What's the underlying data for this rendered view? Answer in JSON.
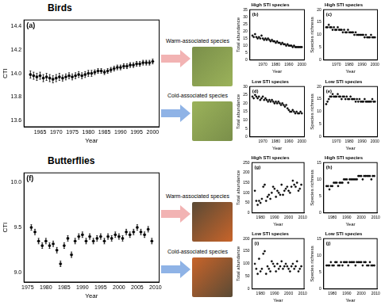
{
  "groups": [
    {
      "title": "Birds",
      "warm_label": "Warm-associated species",
      "cold_label": "Cold-associated species"
    },
    {
      "title": "Butterflies",
      "warm_label": "Warm-associated species",
      "cold_label": "Cold-associated species"
    }
  ],
  "chart_data": [
    {
      "type": "scatter",
      "panel": "(a)",
      "x_label": "Year",
      "y_label": "CTI",
      "x": [
        1962,
        1963,
        1964,
        1965,
        1966,
        1967,
        1968,
        1969,
        1970,
        1971,
        1972,
        1973,
        1974,
        1975,
        1976,
        1977,
        1978,
        1979,
        1980,
        1981,
        1982,
        1983,
        1984,
        1985,
        1986,
        1987,
        1988,
        1989,
        1990,
        1991,
        1992,
        1993,
        1994,
        1995,
        1996,
        1997,
        1998,
        1999,
        2000
      ],
      "values": [
        13.99,
        13.98,
        13.97,
        13.98,
        13.96,
        13.97,
        13.96,
        13.95,
        13.96,
        13.97,
        13.96,
        13.97,
        13.98,
        13.97,
        13.98,
        13.99,
        13.98,
        13.99,
        14,
        14,
        14.01,
        14.02,
        14.02,
        14.01,
        14.02,
        14.03,
        14.04,
        14.05,
        14.05,
        14.06,
        14.06,
        14.07,
        14.07,
        14.08,
        14.08,
        14.09,
        14.09,
        14.09,
        14.1
      ],
      "errors": [
        0.03,
        0.03,
        0.03,
        0.03,
        0.03,
        0.03,
        0.03,
        0.03,
        0.03,
        0.03,
        0.025,
        0.025,
        0.025,
        0.025,
        0.025,
        0.025,
        0.025,
        0.025,
        0.025,
        0.025,
        0.02,
        0.02,
        0.02,
        0.02,
        0.02,
        0.02,
        0.02,
        0.02,
        0.02,
        0.02,
        0.02,
        0.02,
        0.02,
        0.02,
        0.02,
        0.02,
        0.02,
        0.02,
        0.02
      ],
      "color": "#000000",
      "marker": "circle",
      "xlim": [
        1960,
        2002
      ],
      "xticks": [
        1965,
        1970,
        1975,
        1980,
        1985,
        1990,
        1995,
        2000
      ],
      "ylim": [
        13.55,
        14.45
      ],
      "yticks": [
        13.6,
        13.8,
        {
          "value": 14,
          "label": "14.0"
        },
        14.2,
        14.4
      ],
      "grid": false
    },
    {
      "type": "scatter",
      "panel": "(b)",
      "title": "High STI species",
      "x_label": "Year",
      "y_label": "Total abundance",
      "x": [
        1962,
        1963,
        1964,
        1965,
        1966,
        1967,
        1968,
        1969,
        1970,
        1971,
        1972,
        1973,
        1974,
        1975,
        1976,
        1977,
        1978,
        1979,
        1980,
        1981,
        1982,
        1983,
        1984,
        1985,
        1986,
        1987,
        1988,
        1989,
        1990,
        1991,
        1992,
        1993,
        1994,
        1995,
        1996,
        1997,
        1998,
        1999,
        2000
      ],
      "values": [
        17,
        16,
        18,
        16,
        15,
        16,
        15,
        17,
        15,
        14,
        15,
        14,
        15,
        14,
        13,
        14,
        13,
        13,
        12,
        13,
        12,
        12,
        11,
        12,
        11,
        11,
        10,
        11,
        10,
        10,
        10,
        9,
        10,
        9,
        9,
        9,
        9,
        9,
        9
      ],
      "color": "#000000",
      "marker": "circle",
      "xlim": [
        1960,
        2002
      ],
      "xticks": [
        1970,
        1980,
        1990,
        2000
      ],
      "ylim": [
        0,
        35
      ],
      "yticks": [
        0,
        5,
        10,
        15,
        20,
        25,
        30,
        35
      ],
      "grid": false
    },
    {
      "type": "scatter",
      "panel": "(c)",
      "title": "High STI species",
      "x_label": "Year",
      "y_label": "Species richness",
      "x": [
        1962,
        1963,
        1964,
        1965,
        1966,
        1967,
        1968,
        1969,
        1970,
        1971,
        1972,
        1973,
        1974,
        1975,
        1976,
        1977,
        1978,
        1979,
        1980,
        1981,
        1982,
        1983,
        1984,
        1985,
        1986,
        1987,
        1988,
        1989,
        1990,
        1991,
        1992,
        1993,
        1994,
        1995,
        1996,
        1997,
        1998,
        1999,
        2000
      ],
      "values": [
        13,
        13,
        14,
        13,
        13,
        12,
        13,
        12,
        12,
        13,
        12,
        12,
        12,
        11,
        12,
        11,
        11,
        12,
        11,
        11,
        11,
        11,
        10,
        11,
        10,
        10,
        10,
        10,
        10,
        10,
        9,
        10,
        9,
        9,
        9,
        10,
        9,
        9,
        9
      ],
      "color": "#000000",
      "marker": "circle",
      "xlim": [
        1960,
        2002
      ],
      "xticks": [
        1970,
        1980,
        1990,
        2000
      ],
      "ylim": [
        0,
        20
      ],
      "yticks": [
        0,
        5,
        10,
        15,
        20
      ],
      "grid": false
    },
    {
      "type": "scatter",
      "panel": "(d)",
      "title": "Low STI species",
      "x_label": "Year",
      "y_label": "Total abundance",
      "x": [
        1962,
        1963,
        1964,
        1965,
        1966,
        1967,
        1968,
        1969,
        1970,
        1971,
        1972,
        1973,
        1974,
        1975,
        1976,
        1977,
        1978,
        1979,
        1980,
        1981,
        1982,
        1983,
        1984,
        1985,
        1986,
        1987,
        1988,
        1989,
        1990,
        1991,
        1992,
        1993,
        1994,
        1995,
        1996,
        1997,
        1998,
        1999,
        2000
      ],
      "values": [
        24,
        23,
        25,
        24,
        23,
        24,
        22,
        23,
        24,
        22,
        23,
        22,
        21,
        22,
        21,
        22,
        21,
        20,
        21,
        20,
        21,
        20,
        19,
        20,
        19,
        18,
        19,
        17,
        16,
        15,
        15,
        16,
        15,
        14,
        15,
        14,
        14,
        15,
        14
      ],
      "color": "#000000",
      "marker": "circle",
      "xlim": [
        1960,
        2002
      ],
      "xticks": [
        1970,
        1980,
        1990,
        2000
      ],
      "ylim": [
        0,
        30
      ],
      "yticks": [
        0,
        5,
        10,
        15,
        20,
        25,
        30
      ],
      "grid": false
    },
    {
      "type": "scatter",
      "panel": "(e)",
      "title": "Low STI species",
      "x_label": "Year",
      "y_label": "Species richness",
      "x": [
        1962,
        1963,
        1964,
        1965,
        1966,
        1967,
        1968,
        1969,
        1970,
        1971,
        1972,
        1973,
        1974,
        1975,
        1976,
        1977,
        1978,
        1979,
        1980,
        1981,
        1982,
        1983,
        1984,
        1985,
        1986,
        1987,
        1988,
        1989,
        1990,
        1991,
        1992,
        1993,
        1994,
        1995,
        1996,
        1997,
        1998,
        1999,
        2000
      ],
      "values": [
        13,
        14,
        15,
        16,
        16,
        17,
        16,
        16,
        16,
        17,
        16,
        16,
        15,
        16,
        16,
        15,
        16,
        15,
        15,
        16,
        15,
        15,
        15,
        14,
        15,
        14,
        15,
        14,
        14,
        14,
        15,
        14,
        14,
        14,
        14,
        14,
        15,
        14,
        14
      ],
      "color": "#000000",
      "marker": "circle",
      "xlim": [
        1960,
        2002
      ],
      "xticks": [
        1970,
        1980,
        1990,
        2000
      ],
      "ylim": [
        0,
        20
      ],
      "yticks": [
        0,
        5,
        10,
        15,
        20
      ],
      "grid": false
    },
    {
      "type": "scatter",
      "panel": "(f)",
      "x_label": "Year",
      "y_label": "CTI",
      "x": [
        1976,
        1977,
        1978,
        1979,
        1980,
        1981,
        1982,
        1983,
        1984,
        1985,
        1986,
        1987,
        1988,
        1989,
        1990,
        1991,
        1992,
        1993,
        1994,
        1995,
        1996,
        1997,
        1998,
        1999,
        2000,
        2001,
        2002,
        2003,
        2004,
        2005,
        2006,
        2007,
        2008,
        2009
      ],
      "values": [
        9.5,
        9.45,
        9.35,
        9.3,
        9.35,
        9.3,
        9.32,
        9.25,
        9.1,
        9.3,
        9.38,
        9.2,
        9.35,
        9.4,
        9.42,
        9.35,
        9.4,
        9.35,
        9.38,
        9.4,
        9.35,
        9.4,
        9.38,
        9.42,
        9.4,
        9.38,
        9.45,
        9.42,
        9.45,
        9.5,
        9.45,
        9.42,
        9.48,
        9.35
      ],
      "errors": [
        0.03,
        0.03,
        0.03,
        0.03,
        0.03,
        0.03,
        0.03,
        0.03,
        0.03,
        0.03,
        0.03,
        0.03,
        0.03,
        0.03,
        0.03,
        0.03,
        0.03,
        0.03,
        0.03,
        0.03,
        0.03,
        0.03,
        0.03,
        0.03,
        0.03,
        0.03,
        0.03,
        0.03,
        0.03,
        0.03,
        0.03,
        0.03,
        0.03,
        0.03
      ],
      "color": "#000000",
      "marker": "circle",
      "xlim": [
        1974,
        2011
      ],
      "xticks": [
        1975,
        1980,
        1985,
        1990,
        1995,
        2000,
        2005,
        2010
      ],
      "ylim": [
        8.9,
        10.1
      ],
      "yticks": [
        {
          "value": 9,
          "label": "9.0"
        },
        9.5,
        {
          "value": 10,
          "label": "10.0"
        }
      ],
      "grid": false
    },
    {
      "type": "scatter",
      "panel": "(g)",
      "title": "High STI species",
      "x_label": "Year",
      "y_label": "Total abundance",
      "x": [
        1976,
        1977,
        1978,
        1979,
        1980,
        1981,
        1982,
        1983,
        1984,
        1985,
        1986,
        1987,
        1988,
        1989,
        1990,
        1991,
        1992,
        1993,
        1994,
        1995,
        1996,
        1997,
        1998,
        1999,
        2000,
        2001,
        2002,
        2003,
        2004,
        2005,
        2006,
        2007,
        2008,
        2009
      ],
      "values": [
        110,
        60,
        40,
        60,
        50,
        70,
        130,
        140,
        60,
        80,
        90,
        70,
        100,
        130,
        120,
        80,
        110,
        100,
        90,
        140,
        90,
        110,
        120,
        130,
        110,
        100,
        130,
        160,
        140,
        130,
        150,
        110,
        120,
        140
      ],
      "color": "#000000",
      "marker": "circle",
      "xlim": [
        1974,
        2011
      ],
      "xticks": [
        1980,
        1990,
        2000,
        2010
      ],
      "ylim": [
        0,
        250
      ],
      "yticks": [
        0,
        50,
        100,
        150,
        200,
        250
      ],
      "grid": false
    },
    {
      "type": "scatter",
      "panel": "(h)",
      "title": "High STI species",
      "x_label": "Year",
      "y_label": "Species richness",
      "x": [
        1976,
        1977,
        1978,
        1979,
        1980,
        1981,
        1982,
        1983,
        1984,
        1985,
        1986,
        1987,
        1988,
        1989,
        1990,
        1991,
        1992,
        1993,
        1994,
        1995,
        1996,
        1997,
        1998,
        1999,
        2000,
        2001,
        2002,
        2003,
        2004,
        2005,
        2006,
        2007,
        2008,
        2009
      ],
      "values": [
        8,
        8,
        7,
        8,
        8,
        9,
        9,
        9,
        8,
        9,
        9,
        9,
        10,
        10,
        10,
        9,
        10,
        10,
        10,
        10,
        10,
        10,
        11,
        11,
        11,
        10,
        11,
        11,
        11,
        11,
        11,
        10,
        11,
        11
      ],
      "color": "#000000",
      "marker": "circle",
      "xlim": [
        1974,
        2011
      ],
      "xticks": [
        1980,
        1990,
        2000,
        2010
      ],
      "ylim": [
        0,
        15
      ],
      "yticks": [
        0,
        5,
        10,
        15
      ],
      "grid": false
    },
    {
      "type": "scatter",
      "panel": "(i)",
      "title": "Low STI species",
      "x_label": "Year",
      "y_label": "Total abundance",
      "x": [
        1976,
        1977,
        1978,
        1979,
        1980,
        1981,
        1982,
        1983,
        1984,
        1985,
        1986,
        1987,
        1988,
        1989,
        1990,
        1991,
        1992,
        1993,
        1994,
        1995,
        1996,
        1997,
        1998,
        1999,
        2000,
        2001,
        2002,
        2003,
        2004,
        2005,
        2006,
        2007,
        2008,
        2009
      ],
      "values": [
        100,
        80,
        60,
        120,
        70,
        80,
        140,
        150,
        60,
        90,
        80,
        70,
        110,
        100,
        90,
        70,
        100,
        80,
        90,
        110,
        80,
        90,
        100,
        90,
        80,
        70,
        90,
        100,
        80,
        90,
        110,
        70,
        80,
        90
      ],
      "color": "#000000",
      "marker": "circle",
      "xlim": [
        1974,
        2011
      ],
      "xticks": [
        1980,
        1990,
        2000,
        2010
      ],
      "ylim": [
        0,
        200
      ],
      "yticks": [
        0,
        50,
        100,
        150,
        200
      ],
      "grid": false
    },
    {
      "type": "scatter",
      "panel": "(j)",
      "title": "Low STI species",
      "x_label": "Year",
      "y_label": "Species richness",
      "x": [
        1976,
        1977,
        1978,
        1979,
        1980,
        1981,
        1982,
        1983,
        1984,
        1985,
        1986,
        1987,
        1988,
        1989,
        1990,
        1991,
        1992,
        1993,
        1994,
        1995,
        1996,
        1997,
        1998,
        1999,
        2000,
        2001,
        2002,
        2003,
        2004,
        2005,
        2006,
        2007,
        2008,
        2009
      ],
      "values": [
        7,
        7,
        7,
        8,
        7,
        7,
        8,
        8,
        7,
        7,
        8,
        7,
        8,
        8,
        8,
        7,
        8,
        8,
        8,
        8,
        7,
        8,
        8,
        8,
        8,
        7,
        8,
        8,
        7,
        7,
        8,
        7,
        7,
        7
      ],
      "color": "#000000",
      "marker": "circle",
      "xlim": [
        1974,
        2011
      ],
      "xticks": [
        1980,
        1990,
        2000,
        2010
      ],
      "ylim": [
        0,
        15
      ],
      "yticks": [
        0,
        5,
        10,
        15
      ],
      "grid": false
    }
  ]
}
